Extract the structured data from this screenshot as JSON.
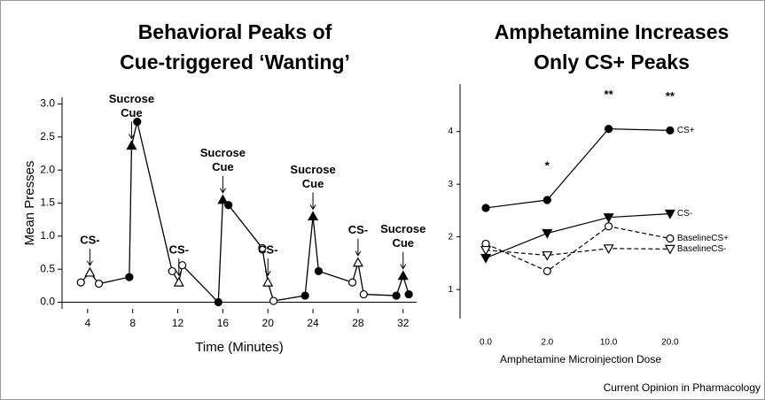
{
  "chart_data": [
    {
      "type": "line",
      "title": [
        "Behavioral Peaks of",
        "Cue-triggered ‘Wanting’"
      ],
      "x_label": "Time (Minutes)",
      "y_label": "Mean Presses",
      "xlim": [
        1.73,
        33.2
      ],
      "ylim": [
        -0.1,
        3.1
      ],
      "xticks": [
        4,
        8,
        12,
        16,
        20,
        24,
        28,
        32
      ],
      "yticks": [
        {
          "value": 0,
          "label": "0.0"
        },
        {
          "value": 0.5,
          "label": "0.5"
        },
        {
          "value": 1,
          "label": "1.0"
        },
        {
          "value": 1.5,
          "label": "1.5"
        },
        {
          "value": 2,
          "label": "2.0"
        },
        {
          "value": 2.5,
          "label": "2.5"
        },
        {
          "value": 3,
          "label": "3.0"
        }
      ],
      "color": "#000000",
      "x": [
        3.4,
        4.2,
        5,
        7.7,
        7.9,
        8.4,
        11.5,
        12.1,
        12.4,
        15.6,
        16,
        16.5,
        19.5,
        20,
        20.5,
        23.3,
        24,
        24.5,
        27.5,
        28,
        28.5,
        31.4,
        32,
        32.5
      ],
      "values": [
        0.3,
        0.45,
        0.28,
        0.38,
        2.37,
        2.73,
        0.47,
        0.3,
        0.56,
        0,
        1.55,
        1.47,
        0.82,
        0.3,
        0.02,
        0.1,
        1.3,
        0.47,
        0.3,
        0.6,
        0.12,
        0.1,
        0.4,
        0.12
      ],
      "markers": [
        "open-circle",
        "open-triangle",
        "open-circle",
        "filled-circle",
        "filled-triangle",
        "filled-circle",
        "open-circle",
        "open-triangle",
        "open-circle",
        "filled-circle",
        "filled-triangle",
        "filled-circle",
        "open-circle",
        "open-triangle",
        "open-circle",
        "filled-circle",
        "filled-triangle",
        "filled-circle",
        "open-circle",
        "open-triangle",
        "open-circle",
        "filled-circle",
        "filled-triangle",
        "filled-circle"
      ],
      "annotations": [
        {
          "lines": [
            "CS-"
          ],
          "x": 4
        },
        {
          "lines": [
            "Sucrose",
            "Cue"
          ],
          "x": 8
        },
        {
          "lines": [
            "CS-"
          ],
          "x": 12
        },
        {
          "lines": [
            "Sucrose",
            "Cue"
          ],
          "x": 16
        },
        {
          "lines": [
            "CS-"
          ],
          "x": 20
        },
        {
          "lines": [
            "Sucrose",
            "Cue"
          ],
          "x": 24
        },
        {
          "lines": [
            "CS-"
          ],
          "x": 28
        },
        {
          "lines": [
            "Sucrose",
            "Cue"
          ],
          "x": 32
        }
      ]
    },
    {
      "type": "line",
      "title": [
        "Amphetamine Increases",
        "Only CS+ Peaks"
      ],
      "x_label": "Amphetamine Microinjection Dose",
      "categories": [
        "0.0",
        "2.0",
        "10.0",
        "20.0"
      ],
      "ylim": [
        0.45,
        4.9
      ],
      "yticks": [
        1,
        2,
        3,
        4
      ],
      "series": [
        {
          "name": "CS+",
          "color": "#000000",
          "marker": "filled-circle",
          "dash": false,
          "values": [
            2.55,
            2.7,
            4.05,
            4.02
          ]
        },
        {
          "name": "CS-",
          "color": "#000000",
          "marker": "filled-down-triangle",
          "dash": false,
          "values": [
            1.6,
            2.07,
            2.37,
            2.44
          ]
        },
        {
          "name": "BaselineCS+",
          "color": "#000000",
          "marker": "open-circle",
          "dash": true,
          "values": [
            1.87,
            1.35,
            2.2,
            1.97
          ]
        },
        {
          "name": "BaselineCS-",
          "color": "#000000",
          "marker": "open-down-triangle",
          "dash": true,
          "values": [
            1.75,
            1.65,
            1.78,
            1.77
          ]
        }
      ],
      "annotations": [
        {
          "text": "*",
          "at": "2.0"
        },
        {
          "text": "**",
          "at": "10.0"
        },
        {
          "text": "**",
          "at": "20.0"
        }
      ]
    }
  ],
  "source": "Current Opinion in Pharmacology"
}
